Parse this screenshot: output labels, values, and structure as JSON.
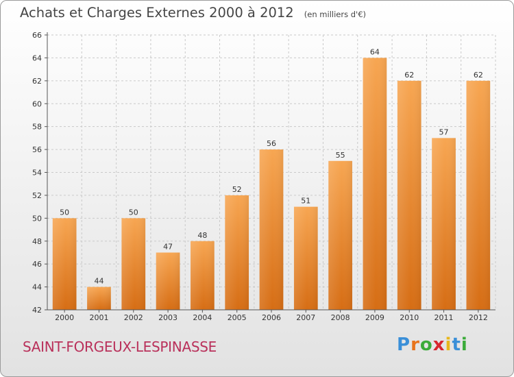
{
  "title": "Achats et Charges Externes 2000 à 2012",
  "subtitle": "(en milliers d'€)",
  "commune": "SAINT-FORGEUX-LESPINASSE",
  "logo": {
    "letters": [
      "P",
      "r",
      "o",
      "x",
      "i",
      "t",
      "i"
    ],
    "colors": [
      "#3a8fd8",
      "#e8731b",
      "#3bab3a",
      "#d7262e",
      "#e8b71b",
      "#3a8fd8",
      "#3bab3a"
    ]
  },
  "chart_data": {
    "type": "bar",
    "categories": [
      "2000",
      "2001",
      "2002",
      "2003",
      "2004",
      "2005",
      "2006",
      "2007",
      "2008",
      "2009",
      "2010",
      "2011",
      "2012"
    ],
    "values": [
      50,
      44,
      50,
      47,
      48,
      52,
      56,
      51,
      55,
      64,
      62,
      57,
      62
    ],
    "ylim": [
      42,
      66
    ],
    "yticks": [
      42,
      44,
      46,
      48,
      50,
      52,
      54,
      56,
      58,
      60,
      62,
      64,
      66
    ],
    "grid": true,
    "bar_color_top": "#f7a652",
    "bar_color_bottom": "#d66d14"
  }
}
